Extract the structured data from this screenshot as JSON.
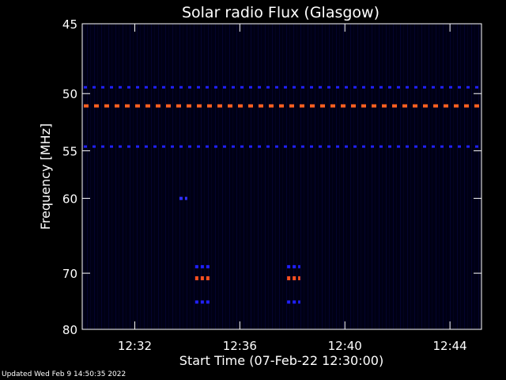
{
  "chart_data": {
    "type": "heatmap",
    "title": "Solar radio Flux (Glasgow)",
    "xlabel": "Start Time (07-Feb-22 12:30:00)",
    "ylabel": "Frequency [MHz]",
    "x_unit": "minutes after 12:30:00",
    "xlim": [
      0,
      15.2
    ],
    "ylim": [
      45,
      80
    ],
    "y_scale": "reciprocal",
    "x_ticks": [
      {
        "value": 2,
        "label": "12:32"
      },
      {
        "value": 6,
        "label": "12:36"
      },
      {
        "value": 10,
        "label": "12:40"
      },
      {
        "value": 14,
        "label": "12:44"
      }
    ],
    "y_ticks": [
      {
        "value": 45,
        "label": "45"
      },
      {
        "value": 50,
        "label": "50"
      },
      {
        "value": 55,
        "label": "55"
      },
      {
        "value": 60,
        "label": "60"
      },
      {
        "value": 70,
        "label": "70"
      },
      {
        "value": 80,
        "label": "80"
      }
    ],
    "horizontal_bands": [
      {
        "freq_mhz": 49.5,
        "level": "low",
        "color": "#2020ff"
      },
      {
        "freq_mhz": 51.0,
        "level": "high",
        "color": "#ff6020"
      },
      {
        "freq_mhz": 54.6,
        "level": "low",
        "color": "#2020ff"
      }
    ],
    "bursts": [
      {
        "t_start": 3.7,
        "t_end": 4.0,
        "freq_mhz": 60.0,
        "level": "low",
        "color": "#3030ff"
      },
      {
        "t_start": 4.3,
        "t_end": 4.9,
        "freq_mhz": 69.0,
        "level": "low",
        "color": "#2020ff"
      },
      {
        "t_start": 4.3,
        "t_end": 4.9,
        "freq_mhz": 70.8,
        "level": "high",
        "color": "#ff5020"
      },
      {
        "t_start": 4.3,
        "t_end": 4.9,
        "freq_mhz": 74.8,
        "level": "low",
        "color": "#2020ff"
      },
      {
        "t_start": 7.8,
        "t_end": 8.3,
        "freq_mhz": 69.0,
        "level": "low",
        "color": "#2020ff"
      },
      {
        "t_start": 7.8,
        "t_end": 8.3,
        "freq_mhz": 70.8,
        "level": "high",
        "color": "#ff5020"
      },
      {
        "t_start": 7.8,
        "t_end": 8.3,
        "freq_mhz": 74.8,
        "level": "low",
        "color": "#2020ff"
      }
    ],
    "colors": {
      "background": "#000000",
      "plot_background": "#000014",
      "axes": "#ffffff"
    }
  },
  "footer": {
    "updated": "Updated Wed Feb  9 14:50:35 2022"
  }
}
